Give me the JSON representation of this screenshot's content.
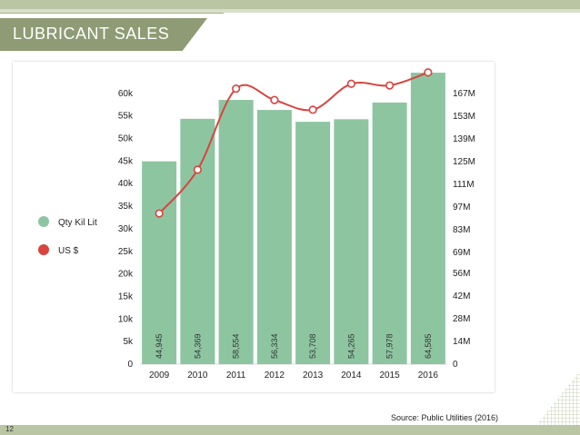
{
  "slide": {
    "title": "LUBRICANT SALES",
    "source": "Source: Public Utilities  (2016)",
    "page_number": "12",
    "accent_color": "#8e9b74",
    "band_color": "#b9c5a3"
  },
  "chart_data": {
    "type": "bar",
    "categories": [
      "2009",
      "2010",
      "2011",
      "2012",
      "2013",
      "2014",
      "2015",
      "2016"
    ],
    "series": [
      {
        "name": "Qty Kil Lit",
        "kind": "bar",
        "axis": "left",
        "color": "#8dc5a1",
        "values": [
          44945,
          54369,
          58554,
          56334,
          53708,
          54265,
          57978,
          64585
        ],
        "labels": [
          "44,945",
          "54,369",
          "58,554",
          "56,334",
          "53,708",
          "54,265",
          "57,978",
          "64,585"
        ]
      },
      {
        "name": "US $",
        "kind": "line",
        "axis": "right",
        "color": "#d9443f",
        "values": [
          93000000,
          120000000,
          170000000,
          163000000,
          157000000,
          173000000,
          172000000,
          180000000
        ]
      }
    ],
    "left_axis": {
      "ylim": [
        0,
        65000
      ],
      "ticks": [
        0,
        5000,
        10000,
        15000,
        20000,
        25000,
        30000,
        35000,
        40000,
        45000,
        50000,
        55000,
        60000
      ],
      "tick_labels": [
        "0",
        "5k",
        "10k",
        "15k",
        "20k",
        "25k",
        "30k",
        "35k",
        "40k",
        "45k",
        "50k",
        "55k",
        "60k"
      ]
    },
    "right_axis": {
      "ylim": [
        0,
        181000000
      ],
      "ticks": [
        0,
        14000000,
        28000000,
        42000000,
        56000000,
        69000000,
        83000000,
        97000000,
        111000000,
        125000000,
        139000000,
        153000000,
        167000000
      ],
      "tick_labels": [
        "0",
        "14M",
        "28M",
        "42M",
        "56M",
        "69M",
        "83M",
        "97M",
        "111M",
        "125M",
        "139M",
        "153M",
        "167M"
      ]
    },
    "legend": {
      "position": "left"
    },
    "grid": false
  }
}
